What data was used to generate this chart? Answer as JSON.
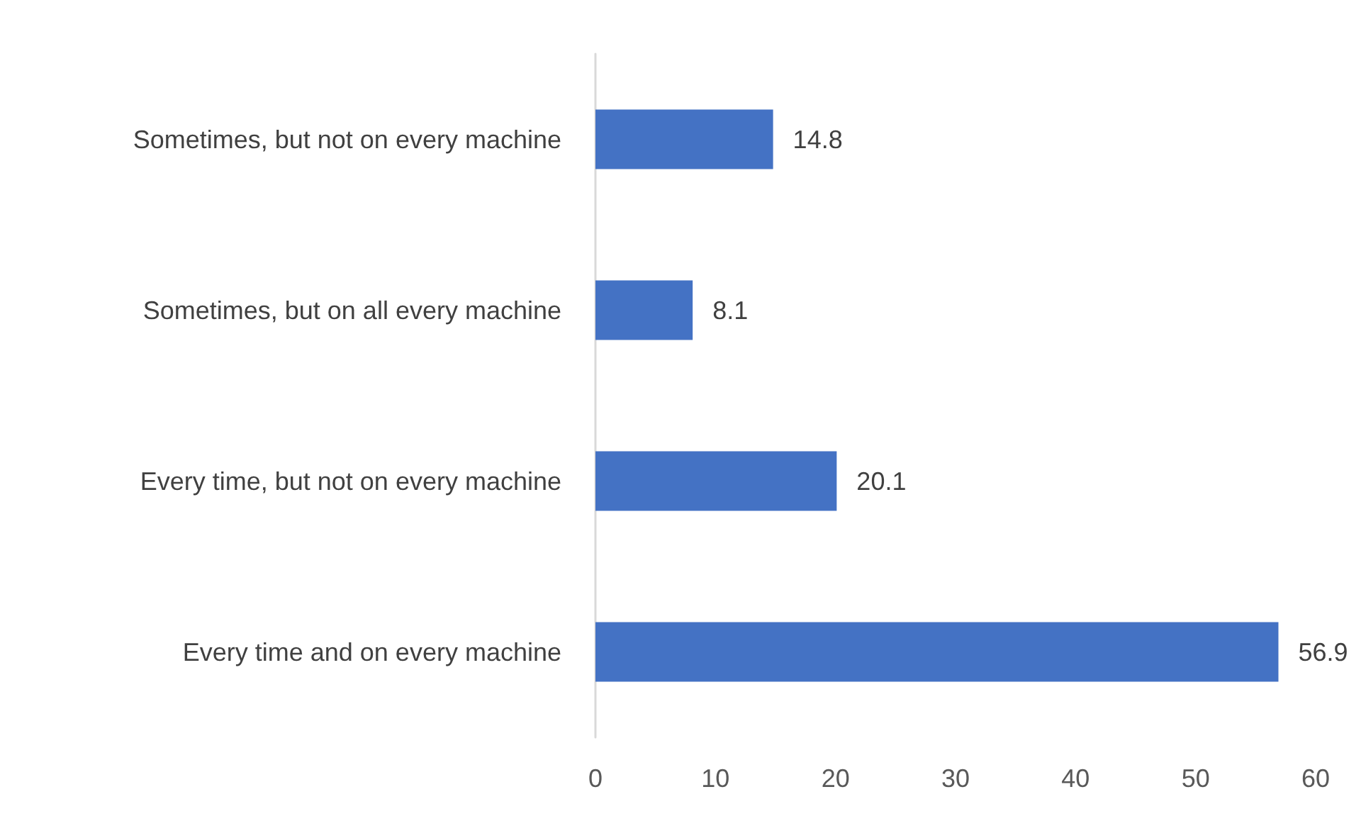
{
  "chart_data": {
    "type": "bar",
    "orientation": "horizontal",
    "categories": [
      "Sometimes, but not on every machine",
      "Sometimes, but on all every machine",
      "Every time, but not on every machine",
      "Every time and on every machine"
    ],
    "values": [
      14.8,
      8.1,
      20.1,
      56.9
    ],
    "color": "#4472c4",
    "xlim": [
      0,
      60
    ],
    "xticks": [
      0,
      10,
      20,
      30,
      40,
      50,
      60
    ],
    "grid": false,
    "data_labels": true
  }
}
